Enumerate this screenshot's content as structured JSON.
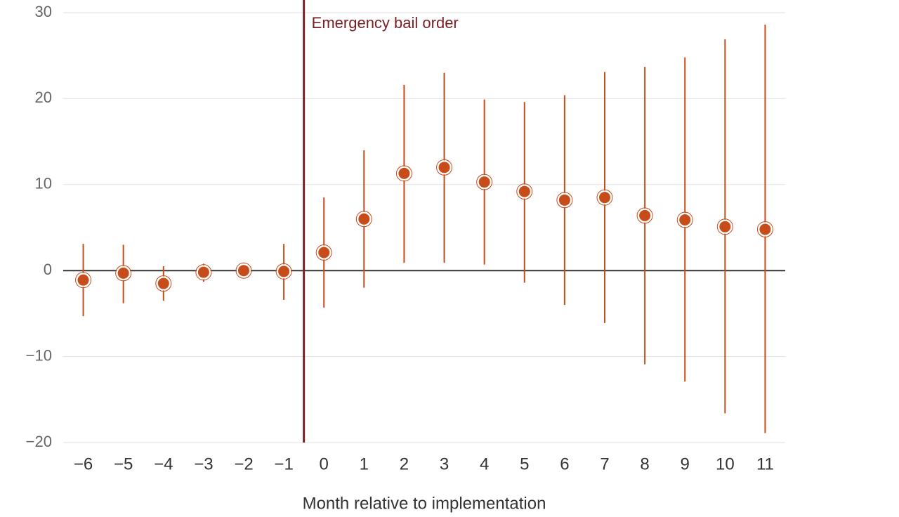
{
  "chart_data": {
    "type": "errorbar",
    "x_label": "Month relative to implementation",
    "x": [
      -6,
      -5,
      -4,
      -3,
      -2,
      -1,
      0,
      1,
      2,
      3,
      4,
      5,
      6,
      7,
      8,
      9,
      10,
      11
    ],
    "values": [
      -1.1,
      -0.3,
      -1.5,
      -0.2,
      0,
      -0.1,
      2.1,
      6.0,
      11.3,
      12.0,
      10.3,
      9.2,
      8.2,
      8.5,
      6.4,
      5.9,
      5.1,
      4.8
    ],
    "lower": [
      -5.3,
      -3.8,
      -3.5,
      -1.3,
      0,
      -3.4,
      -4.3,
      -2.0,
      0.9,
      0.9,
      0.7,
      -1.4,
      -4.0,
      -6.1,
      -10.9,
      -12.9,
      -16.6,
      -18.9
    ],
    "upper": [
      3.1,
      3.0,
      0.5,
      0.8,
      0,
      3.1,
      8.5,
      14.0,
      21.6,
      23.0,
      19.9,
      19.6,
      20.4,
      23.1,
      23.7,
      24.8,
      26.9,
      28.6
    ],
    "color": "#c84b1a",
    "xlim": [
      -6.5,
      11.5
    ],
    "xticks": [
      {
        "value": -6,
        "label": "−6"
      },
      {
        "value": -5,
        "label": "−5"
      },
      {
        "value": -4,
        "label": "−4"
      },
      {
        "value": -3,
        "label": "−3"
      },
      {
        "value": -2,
        "label": "−2"
      },
      {
        "value": -1,
        "label": "−1"
      },
      0,
      1,
      2,
      3,
      4,
      5,
      6,
      7,
      8,
      9,
      10,
      11
    ],
    "ylim": [
      -20,
      30
    ],
    "yticks": [
      30,
      20,
      10,
      0,
      {
        "value": -10,
        "label": "−10"
      },
      {
        "value": -20,
        "label": "−20"
      }
    ],
    "grid": true,
    "annotation": {
      "text": "Emergency bail order",
      "x": -0.5,
      "color": "#7b1f24"
    }
  }
}
